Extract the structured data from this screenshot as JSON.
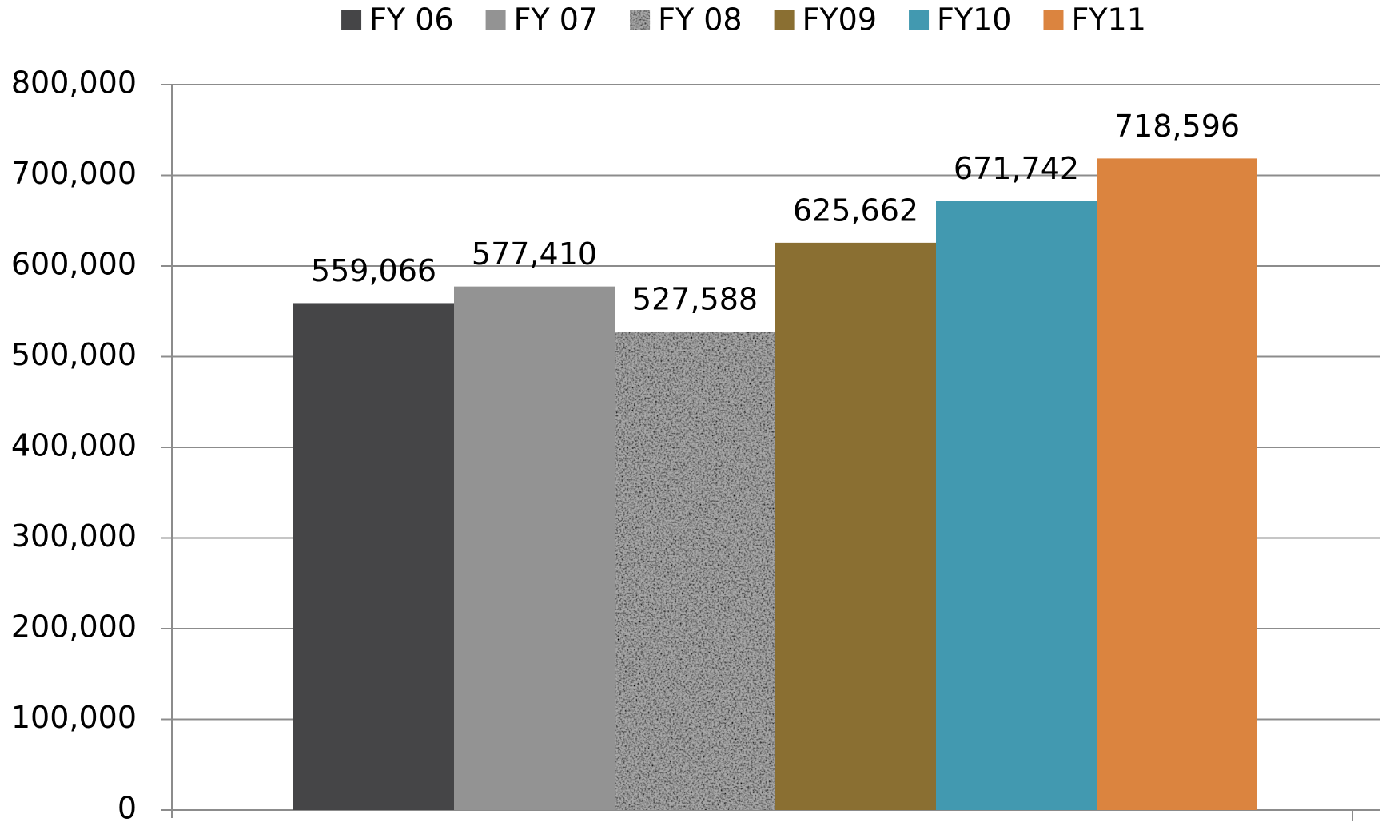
{
  "chart_data": {
    "type": "bar",
    "categories": [
      null
    ],
    "series": [
      {
        "name": "FY 06",
        "color": "#454547",
        "values": [
          559066
        ],
        "value_labels": [
          "559,066"
        ]
      },
      {
        "name": "FY 07",
        "color": "#939393",
        "values": [
          577410
        ],
        "value_labels": [
          "577,410"
        ]
      },
      {
        "name": "FY 08",
        "color": "#a8a8a8",
        "fill_pattern": "noise",
        "values": [
          527588
        ],
        "value_labels": [
          "527,588"
        ]
      },
      {
        "name": "FY09",
        "color": "#8a6f32",
        "values": [
          625662
        ],
        "value_labels": [
          "625,662"
        ]
      },
      {
        "name": "FY10",
        "color": "#4299b0",
        "values": [
          671742
        ],
        "value_labels": [
          "671,742"
        ]
      },
      {
        "name": "FY11",
        "color": "#db843f",
        "values": [
          718596
        ],
        "value_labels": [
          "718,596"
        ]
      }
    ],
    "ylim": [
      0,
      800000
    ],
    "yticks": [
      0,
      {
        "value": 100000,
        "label": "100,000"
      },
      {
        "value": 200000,
        "label": "200,000"
      },
      {
        "value": 300000,
        "label": "300,000"
      },
      {
        "value": 400000,
        "label": "400,000"
      },
      {
        "value": 500000,
        "label": "500,000"
      },
      {
        "value": 600000,
        "label": "600,000"
      },
      {
        "value": 700000,
        "label": "700,000"
      },
      {
        "value": 800000,
        "label": "800,000"
      }
    ],
    "grid": true,
    "legend": "top"
  }
}
